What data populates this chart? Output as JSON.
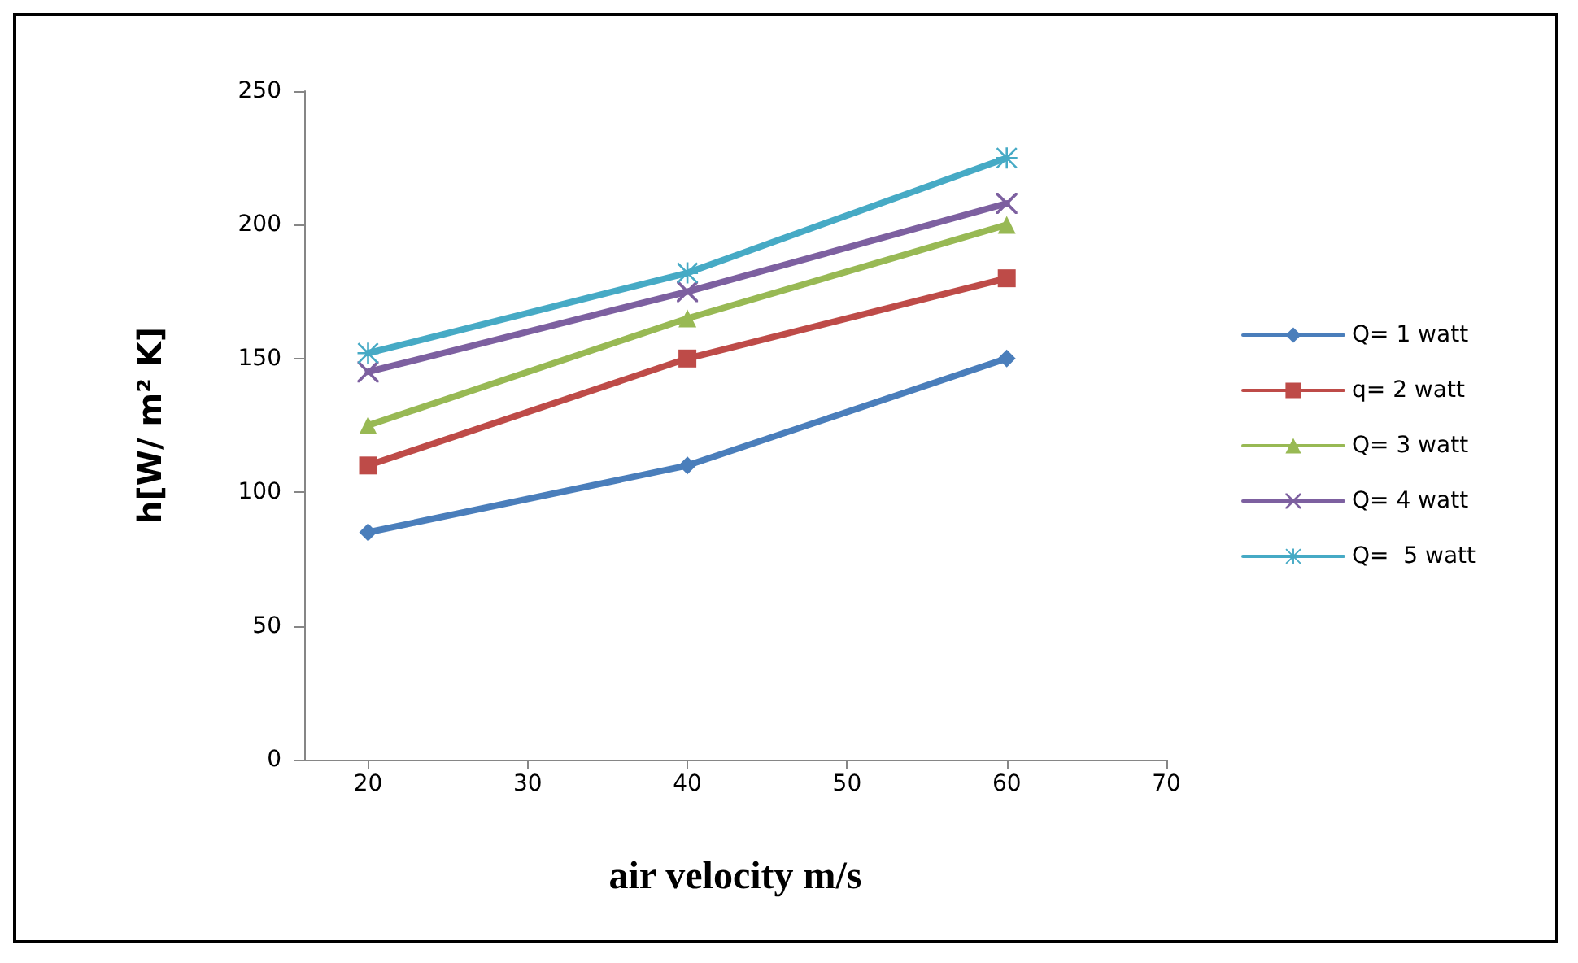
{
  "chart_data": {
    "type": "line",
    "xlabel": "air velocity m/s",
    "ylabel": "h[W/ m² K]",
    "x": [
      20,
      40,
      60
    ],
    "series": [
      {
        "name": "Q= 1 watt",
        "color": "#4a7ebb",
        "marker": "diamond",
        "values": [
          85,
          110,
          150
        ]
      },
      {
        "name": "q= 2 watt",
        "color": "#be4b48",
        "marker": "square",
        "values": [
          110,
          150,
          180
        ]
      },
      {
        "name": "Q= 3 watt",
        "color": "#98b954",
        "marker": "triangle",
        "values": [
          125,
          165,
          200
        ]
      },
      {
        "name": "Q= 4 watt",
        "color": "#7d60a0",
        "marker": "cross",
        "values": [
          145,
          175,
          208
        ]
      },
      {
        "name": "Q=  5 watt",
        "color": "#46aac5",
        "marker": "star",
        "values": [
          152,
          182,
          225
        ]
      }
    ],
    "xlim": [
      16,
      70
    ],
    "xticks": [
      20,
      30,
      40,
      50,
      60,
      70
    ],
    "ylim": [
      0,
      250
    ],
    "yticks": [
      0,
      50,
      100,
      150,
      200,
      250
    ],
    "grid": false,
    "legend": "right",
    "line_style": "solid"
  }
}
